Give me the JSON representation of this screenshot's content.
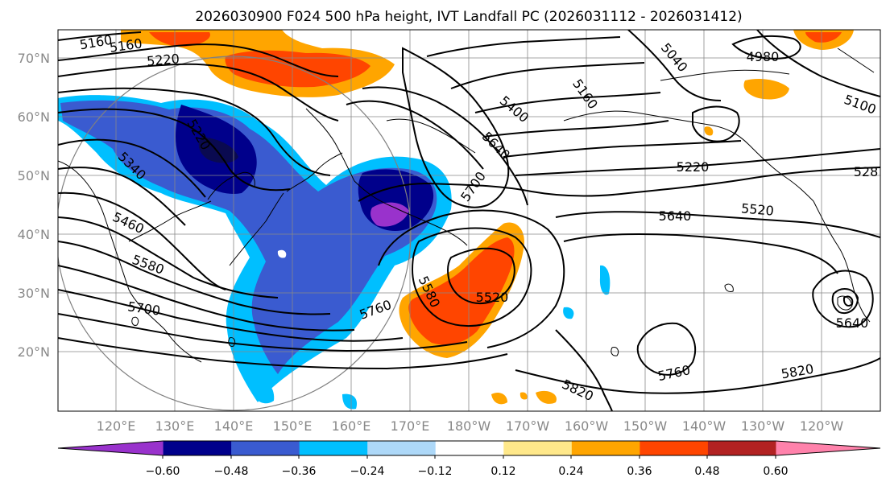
{
  "title": "2026030900 F024 500 hPa height, IVT Landfall PC (2026031112 - 2026031412)",
  "lat_labels": [
    "70°N",
    "60°N",
    "50°N",
    "40°N",
    "30°N",
    "20°N"
  ],
  "lon_labels": [
    "120°E",
    "130°E",
    "140°E",
    "150°E",
    "160°E",
    "170°E",
    "180°W",
    "170°W",
    "160°W",
    "150°W",
    "140°W",
    "130°W",
    "120°W"
  ],
  "colorbar": {
    "ticks": [
      "−0.60",
      "−0.48",
      "−0.36",
      "−0.24",
      "−0.12",
      "0.12",
      "0.24",
      "0.36",
      "0.48",
      "0.60"
    ],
    "colors": [
      "#9932cc",
      "#00008b",
      "#3a5bd0",
      "#00bfff",
      "#add8f8",
      "#ffffff",
      "#ffe88a",
      "#ffa500",
      "#ff4500",
      "#b22222",
      "#ff82ab"
    ]
  },
  "contour_labels": [
    "5160",
    "5160",
    "5220",
    "5040",
    "4980",
    "5160",
    "5400",
    "5100",
    "5220",
    "5340",
    "5640",
    "5220",
    "528",
    "5700",
    "5460",
    "5640",
    "5520",
    "5580",
    "5580",
    "5520",
    "5700",
    "5760",
    "5640",
    "5760",
    "5820",
    "5820"
  ]
}
